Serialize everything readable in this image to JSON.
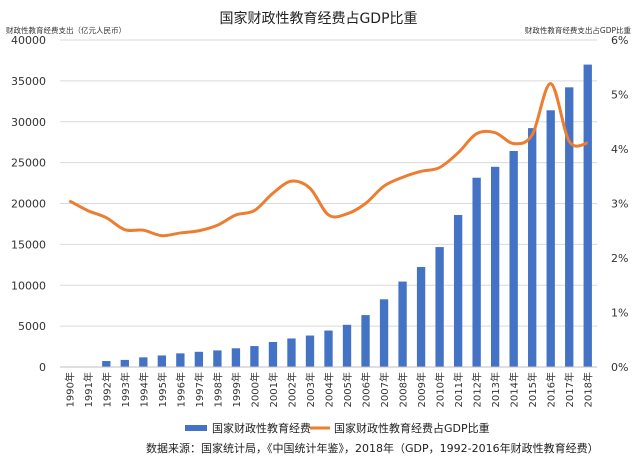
{
  "chart_data": {
    "type": "bar+line",
    "title": "国家财政性教育经费占GDP比重",
    "left_axis_label": "财政性教育经费支出（亿元人民币）",
    "right_axis_label": "财政性教育经费支出占GDP比重",
    "categories": [
      "1990年",
      "1991年",
      "1992年",
      "1993年",
      "1994年",
      "1995年",
      "1996年",
      "1997年",
      "1998年",
      "1999年",
      "2000年",
      "2001年",
      "2002年",
      "2003年",
      "2004年",
      "2005年",
      "2006年",
      "2007年",
      "2008年",
      "2009年",
      "2010年",
      "2011年",
      "2012年",
      "2013年",
      "2014年",
      "2015年",
      "2016年",
      "2017年",
      "2018年"
    ],
    "y_left": {
      "ticks": [
        "0",
        "5000",
        "10000",
        "15000",
        "20000",
        "25000",
        "30000",
        "35000",
        "40000"
      ],
      "min": 0,
      "max": 40000
    },
    "y_right": {
      "ticks": [
        "0%",
        "1%",
        "2%",
        "3%",
        "4%",
        "5%",
        "6%"
      ],
      "min": 0,
      "max": 6
    },
    "series": [
      {
        "name": "国家财政性教育经费",
        "type": "bar",
        "color": "#4472C4",
        "values": [
          null,
          null,
          730,
          870,
          1180,
          1410,
          1670,
          1860,
          2030,
          2290,
          2560,
          3060,
          3490,
          3850,
          4460,
          5160,
          6350,
          8280,
          10450,
          12230,
          14670,
          18590,
          23150,
          24490,
          26420,
          29220,
          31400,
          34210,
          36990
        ]
      },
      {
        "name": "国家财政性教育经费占GDP比重",
        "type": "line",
        "color": "#ED7D31",
        "values": [
          3.05,
          2.87,
          2.74,
          2.52,
          2.51,
          2.41,
          2.46,
          2.5,
          2.6,
          2.79,
          2.87,
          3.19,
          3.41,
          3.28,
          2.79,
          2.81,
          3.0,
          3.32,
          3.48,
          3.59,
          3.66,
          3.93,
          4.28,
          4.3,
          4.1,
          4.26,
          5.2,
          4.14,
          4.11
        ]
      }
    ],
    "legend_position": "bottom",
    "grid": true
  },
  "source_note": "数据来源：国家统计局，《中国统计年鉴》，2018年（GDP，1992-2016年财政性教育经费）"
}
